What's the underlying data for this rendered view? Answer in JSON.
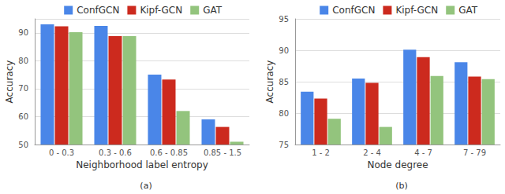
{
  "chart_data": [
    {
      "type": "bar",
      "subtitle": "(a)",
      "x_label": "Neighborhood label entropy",
      "y_label": "Accuracy",
      "categories": [
        "0 - 0.3",
        "0.3 - 0.6",
        "0.6 - 0.85",
        "0.85 - 1.5"
      ],
      "series": [
        {
          "name": "ConfGCN",
          "color": "#4a86e8",
          "values": [
            93,
            92.5,
            75,
            59
          ]
        },
        {
          "name": "Kipf-GCN",
          "color": "#cc2a1e",
          "values": [
            92.3,
            88.8,
            73.3,
            56.3
          ]
        },
        {
          "name": "GAT",
          "color": "#93c47d",
          "values": [
            90.2,
            88.8,
            62,
            51
          ]
        }
      ],
      "ylim": [
        50,
        95
      ],
      "yticks": [
        50,
        60,
        70,
        80,
        90
      ],
      "grid": true,
      "legend": "top"
    },
    {
      "type": "bar",
      "subtitle": "(b)",
      "x_label": "Node degree",
      "y_label": "Accuracy",
      "categories": [
        "1 - 2",
        "2 - 4",
        "4 - 7",
        "7 - 79"
      ],
      "series": [
        {
          "name": "ConfGCN",
          "color": "#4a86e8",
          "values": [
            83.4,
            85.5,
            90.1,
            88.1
          ]
        },
        {
          "name": "Kipf-GCN",
          "color": "#cc2a1e",
          "values": [
            82.3,
            84.8,
            88.9,
            85.8
          ]
        },
        {
          "name": "GAT",
          "color": "#93c47d",
          "values": [
            79.1,
            77.8,
            85.9,
            85.4
          ]
        }
      ],
      "ylim": [
        75,
        95
      ],
      "yticks": [
        75,
        80,
        85,
        90,
        95
      ],
      "grid": true,
      "legend": "top"
    }
  ]
}
